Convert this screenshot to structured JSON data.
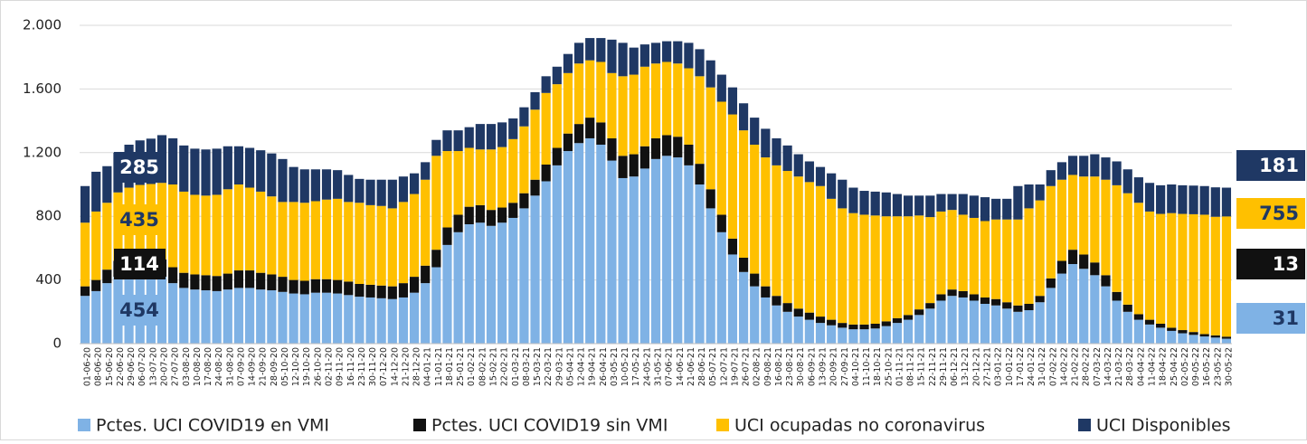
{
  "chart_data": {
    "type": "stacked_bar",
    "categories": [
      "01-06-20",
      "08-06-20",
      "15-06-20",
      "22-06-20",
      "29-06-20",
      "06-07-20",
      "13-07-20",
      "20-07-20",
      "27-07-20",
      "03-08-20",
      "10-08-20",
      "17-08-20",
      "24-08-20",
      "31-08-20",
      "07-09-20",
      "14-09-20",
      "21-09-20",
      "28-09-20",
      "05-10-20",
      "12-10-20",
      "19-10-20",
      "26-10-20",
      "02-11-20",
      "09-11-20",
      "16-11-20",
      "23-11-20",
      "30-11-20",
      "07-12-20",
      "14-12-20",
      "21-12-20",
      "28-12-20",
      "04-01-21",
      "11-01-21",
      "18-01-21",
      "25-01-21",
      "01-02-21",
      "08-02-21",
      "15-02-21",
      "22-02-21",
      "01-03-21",
      "08-03-21",
      "15-03-21",
      "22-03-21",
      "29-03-21",
      "05-04-21",
      "12-04-21",
      "19-04-21",
      "26-04-21",
      "03-05-21",
      "10-05-21",
      "17-05-21",
      "24-05-21",
      "31-05-21",
      "07-06-21",
      "14-06-21",
      "21-06-21",
      "28-06-21",
      "05-07-21",
      "12-07-21",
      "19-07-21",
      "26-07-21",
      "02-08-21",
      "09-08-21",
      "16-08-21",
      "23-08-21",
      "30-08-21",
      "06-09-21",
      "13-09-21",
      "20-09-21",
      "27-09-21",
      "04-10-21",
      "11-10-21",
      "18-10-21",
      "25-10-21",
      "01-11-21",
      "08-11-21",
      "15-11-21",
      "22-11-21",
      "29-11-21",
      "06-12-21",
      "13-12-21",
      "20-12-21",
      "27-12-21",
      "03-01-22",
      "10-01-22",
      "17-01-22",
      "24-01-22",
      "31-01-22",
      "07-02-22",
      "14-02-22",
      "21-02-22",
      "28-02-22",
      "07-03-22",
      "14-03-22",
      "21-03-22",
      "28-03-22",
      "04-04-22",
      "11-04-22",
      "18-04-22",
      "25-04-22",
      "02-05-22",
      "09-05-22",
      "16-05-22",
      "23-05-22",
      "30-05-22"
    ],
    "series": [
      {
        "name": "Pctes. UCI COVID19 en VMI",
        "color": "#7fb2e5",
        "label_color": "#1f3864",
        "start_label": 454,
        "end_label": 31,
        "values": [
          300,
          330,
          380,
          420,
          440,
          450,
          454,
          420,
          380,
          350,
          340,
          335,
          330,
          340,
          350,
          350,
          340,
          335,
          325,
          315,
          310,
          320,
          320,
          315,
          305,
          295,
          290,
          285,
          280,
          290,
          320,
          380,
          480,
          620,
          700,
          750,
          760,
          740,
          760,
          790,
          850,
          930,
          1020,
          1120,
          1210,
          1260,
          1290,
          1250,
          1150,
          1040,
          1050,
          1100,
          1160,
          1180,
          1170,
          1120,
          1000,
          850,
          700,
          560,
          450,
          360,
          290,
          240,
          200,
          170,
          150,
          130,
          115,
          100,
          90,
          90,
          95,
          110,
          130,
          150,
          180,
          220,
          270,
          300,
          290,
          270,
          250,
          240,
          220,
          200,
          210,
          260,
          350,
          440,
          500,
          470,
          430,
          360,
          270,
          200,
          150,
          120,
          100,
          80,
          65,
          55,
          45,
          38,
          31
        ]
      },
      {
        "name": "Pctes. UCI COVID19 sin VMI",
        "color": "#111111",
        "label_color": "#ffffff",
        "start_label": 114,
        "end_label": 13,
        "values": [
          60,
          70,
          85,
          100,
          110,
          112,
          114,
          110,
          100,
          95,
          95,
          95,
          95,
          100,
          110,
          110,
          105,
          100,
          95,
          85,
          85,
          85,
          85,
          85,
          85,
          80,
          80,
          80,
          80,
          90,
          100,
          110,
          110,
          110,
          110,
          110,
          110,
          100,
          95,
          95,
          95,
          100,
          105,
          110,
          110,
          120,
          130,
          140,
          140,
          140,
          140,
          140,
          130,
          130,
          130,
          130,
          130,
          120,
          110,
          100,
          90,
          80,
          70,
          60,
          55,
          50,
          45,
          40,
          35,
          30,
          30,
          30,
          30,
          30,
          30,
          30,
          35,
          35,
          40,
          40,
          40,
          40,
          40,
          40,
          40,
          40,
          40,
          40,
          60,
          80,
          90,
          90,
          80,
          70,
          55,
          45,
          35,
          30,
          25,
          20,
          20,
          18,
          15,
          14,
          13
        ]
      },
      {
        "name": "UCI ocupadas no coronavirus",
        "color": "#ffc000",
        "label_color": "#1f3864",
        "start_label": 435,
        "end_label": 755,
        "values": [
          400,
          430,
          420,
          430,
          430,
          435,
          435,
          480,
          520,
          510,
          500,
          500,
          510,
          530,
          540,
          520,
          510,
          490,
          470,
          490,
          490,
          490,
          500,
          510,
          500,
          510,
          500,
          500,
          490,
          510,
          520,
          540,
          590,
          480,
          400,
          370,
          350,
          380,
          380,
          400,
          420,
          440,
          450,
          400,
          380,
          380,
          360,
          380,
          410,
          500,
          500,
          500,
          470,
          460,
          460,
          480,
          550,
          640,
          710,
          780,
          800,
          810,
          810,
          820,
          830,
          830,
          820,
          820,
          760,
          720,
          700,
          690,
          680,
          660,
          640,
          620,
          590,
          540,
          520,
          500,
          480,
          480,
          480,
          500,
          520,
          540,
          600,
          600,
          580,
          510,
          470,
          490,
          540,
          600,
          670,
          700,
          700,
          680,
          690,
          720,
          730,
          740,
          750,
          745,
          755
        ]
      },
      {
        "name": "UCI Disponibles",
        "color": "#1f3864",
        "label_color": "#ffffff",
        "start_label": 285,
        "end_label": 181,
        "values": [
          230,
          250,
          230,
          250,
          270,
          280,
          285,
          300,
          290,
          290,
          290,
          290,
          290,
          270,
          240,
          250,
          260,
          270,
          270,
          220,
          210,
          200,
          190,
          180,
          170,
          150,
          160,
          165,
          180,
          160,
          130,
          110,
          100,
          130,
          130,
          130,
          160,
          160,
          155,
          130,
          120,
          110,
          105,
          110,
          120,
          130,
          140,
          150,
          210,
          210,
          170,
          140,
          130,
          130,
          140,
          160,
          170,
          170,
          170,
          170,
          170,
          170,
          180,
          170,
          160,
          140,
          130,
          120,
          160,
          180,
          160,
          150,
          150,
          150,
          140,
          130,
          125,
          135,
          110,
          100,
          130,
          140,
          150,
          130,
          130,
          210,
          150,
          100,
          100,
          110,
          120,
          130,
          140,
          140,
          150,
          150,
          160,
          180,
          180,
          180,
          180,
          180,
          180,
          185,
          181
        ]
      }
    ],
    "ylim": [
      0,
      2000
    ],
    "yticks": [
      0,
      400,
      800,
      {
        "value": 1200,
        "label": "1.200"
      },
      {
        "value": 1600,
        "label": "1.600"
      },
      {
        "value": 2000,
        "label": "2.000"
      }
    ],
    "grid": true
  }
}
